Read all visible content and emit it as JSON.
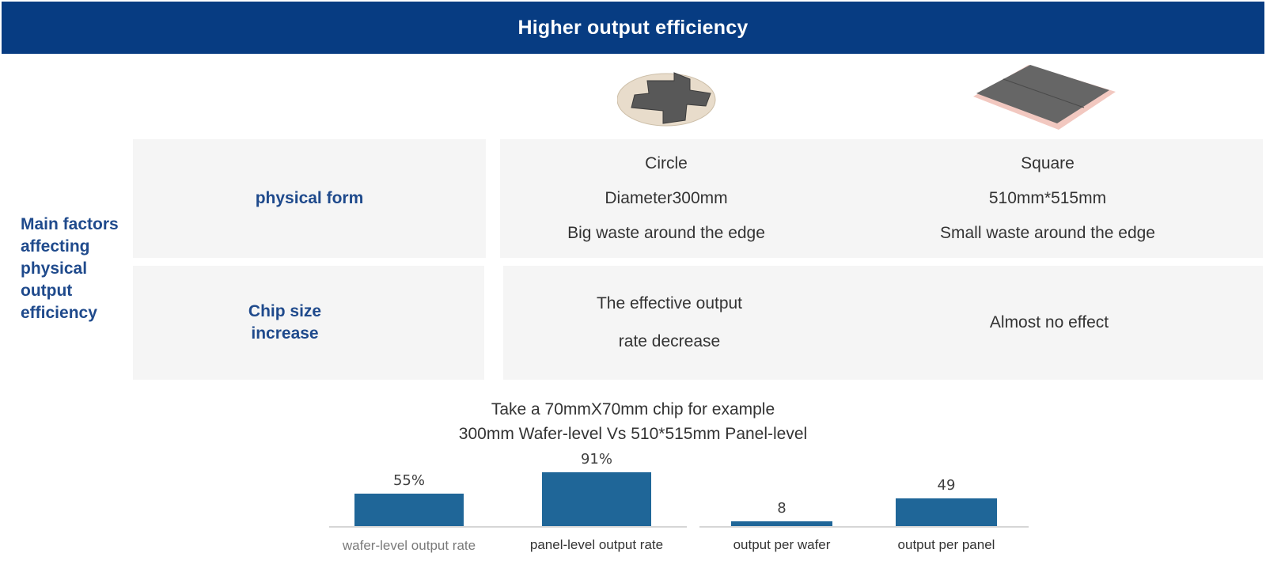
{
  "header": {
    "title": "Higher output efficiency"
  },
  "side_label": "Main factors affecting physical output efficiency",
  "table": {
    "rows": [
      {
        "label": "physical form",
        "wafer": [
          "Circle",
          "Diameter300mm",
          "Big waste around the edge"
        ],
        "panel": [
          "Square",
          "510mm*515mm",
          "Small waste around the edge"
        ]
      },
      {
        "label": "Chip size increase",
        "wafer": [
          "The effective output",
          "rate decrease"
        ],
        "panel": [
          "Almost no effect"
        ]
      }
    ]
  },
  "icons": {
    "wafer": "round-wafer-icon",
    "panel": "square-panel-icon"
  },
  "chart_title": {
    "line1": "Take a 70mmX70mm chip for example",
    "line2": "300mm Wafer-level Vs 510*515mm Panel-level"
  },
  "chart_data": [
    {
      "type": "bar",
      "categories": [
        "wafer-level output rate",
        "panel-level output rate"
      ],
      "values": [
        55,
        91
      ],
      "value_labels": [
        "55%",
        "91%"
      ]
    },
    {
      "type": "bar",
      "categories": [
        "output per wafer",
        "output per panel"
      ],
      "values": [
        8,
        49
      ],
      "value_labels": [
        "8",
        "49"
      ]
    }
  ],
  "colors": {
    "header_bg": "#073c82",
    "accent_text": "#1f4a8c",
    "bar": "#1f6698",
    "cell_bg": "#f5f5f5"
  }
}
